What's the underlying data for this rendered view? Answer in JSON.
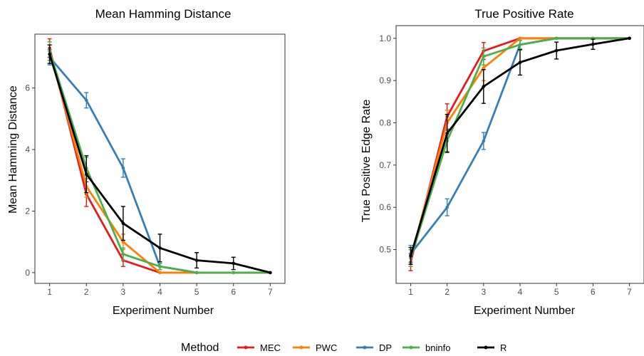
{
  "legend": {
    "title": "Method",
    "entries": [
      {
        "name": "MEC",
        "color": "#e41a1c"
      },
      {
        "name": "PWC",
        "color": "#ff7f00"
      },
      {
        "name": "DP",
        "color": "#377eb8"
      },
      {
        "name": "bninfo",
        "color": "#4daf4a"
      },
      {
        "name": "R",
        "color": "#000000"
      }
    ],
    "placement": "bottom"
  },
  "chart_data": [
    {
      "type": "line",
      "title": "Mean Hamming Distance",
      "xlabel": "Experiment Number",
      "ylabel": "Mean Hamming Distance",
      "x": [
        1,
        2,
        3,
        4,
        5,
        6,
        7
      ],
      "xlim": [
        0.6,
        7.4
      ],
      "ylim": [
        -0.35,
        7.75
      ],
      "yticks": [
        0,
        2,
        4,
        6
      ],
      "grid": false,
      "series": [
        {
          "name": "MEC",
          "color": "#e41a1c",
          "values": [
            7.3,
            2.55,
            0.4,
            0.0,
            0.0,
            0.0,
            0.0
          ],
          "errors": [
            0.3,
            0.4,
            0.2,
            0.0,
            0.0,
            0.0,
            0.0
          ]
        },
        {
          "name": "PWC",
          "color": "#ff7f00",
          "values": [
            7.2,
            2.8,
            1.0,
            0.0,
            0.0,
            0.0,
            0.0
          ],
          "errors": [
            0.3,
            0.35,
            0.25,
            0.0,
            0.0,
            0.0,
            0.0
          ]
        },
        {
          "name": "DP",
          "color": "#377eb8",
          "values": [
            7.0,
            5.6,
            3.4,
            0.2,
            0.0,
            0.0,
            0.0
          ],
          "errors": [
            0.25,
            0.25,
            0.3,
            0.1,
            0.0,
            0.0,
            0.0
          ]
        },
        {
          "name": "bninfo",
          "color": "#4daf4a",
          "values": [
            7.2,
            3.4,
            0.6,
            0.2,
            0.0,
            0.0,
            0.0
          ],
          "errors": [
            0.3,
            0.35,
            0.2,
            0.1,
            0.0,
            0.0,
            0.0
          ]
        },
        {
          "name": "R",
          "color": "#000000",
          "values": [
            7.1,
            3.2,
            1.6,
            0.8,
            0.4,
            0.3,
            0.0
          ],
          "errors": [
            0.3,
            0.6,
            0.55,
            0.45,
            0.25,
            0.2,
            0.0
          ]
        }
      ]
    },
    {
      "type": "line",
      "title": "True Positive Rate",
      "xlabel": "Experiment Number",
      "ylabel": "True Positive Edge Rate",
      "x": [
        1,
        2,
        3,
        4,
        5,
        6,
        7
      ],
      "xlim": [
        0.6,
        7.4
      ],
      "ylim": [
        0.42,
        1.03
      ],
      "yticks": [
        0.5,
        0.6,
        0.7,
        0.8,
        0.9,
        1.0
      ],
      "ytick_labels": [
        "0.5",
        "0.6",
        "0.7",
        "0.8",
        "0.9",
        "1.0"
      ],
      "grid": false,
      "series": [
        {
          "name": "MEC",
          "color": "#e41a1c",
          "values": [
            0.47,
            0.815,
            0.97,
            1.0,
            1.0,
            1.0,
            1.0
          ],
          "errors": [
            0.02,
            0.03,
            0.02,
            0.0,
            0.0,
            0.0,
            0.0
          ]
        },
        {
          "name": "PWC",
          "color": "#ff7f00",
          "values": [
            0.48,
            0.8,
            0.93,
            1.0,
            1.0,
            1.0,
            1.0
          ],
          "errors": [
            0.02,
            0.03,
            0.03,
            0.0,
            0.0,
            0.0,
            0.0
          ]
        },
        {
          "name": "DP",
          "color": "#377eb8",
          "values": [
            0.49,
            0.6,
            0.757,
            0.985,
            1.0,
            1.0,
            1.0
          ],
          "errors": [
            0.02,
            0.02,
            0.02,
            0.01,
            0.0,
            0.0,
            0.0
          ]
        },
        {
          "name": "bninfo",
          "color": "#4daf4a",
          "values": [
            0.48,
            0.757,
            0.957,
            0.985,
            1.0,
            1.0,
            1.0
          ],
          "errors": [
            0.02,
            0.025,
            0.02,
            0.01,
            0.0,
            0.0,
            0.0
          ]
        },
        {
          "name": "R",
          "color": "#000000",
          "values": [
            0.485,
            0.775,
            0.886,
            0.943,
            0.971,
            0.986,
            1.0
          ],
          "errors": [
            0.02,
            0.045,
            0.04,
            0.03,
            0.02,
            0.012,
            0.0
          ]
        }
      ]
    }
  ]
}
